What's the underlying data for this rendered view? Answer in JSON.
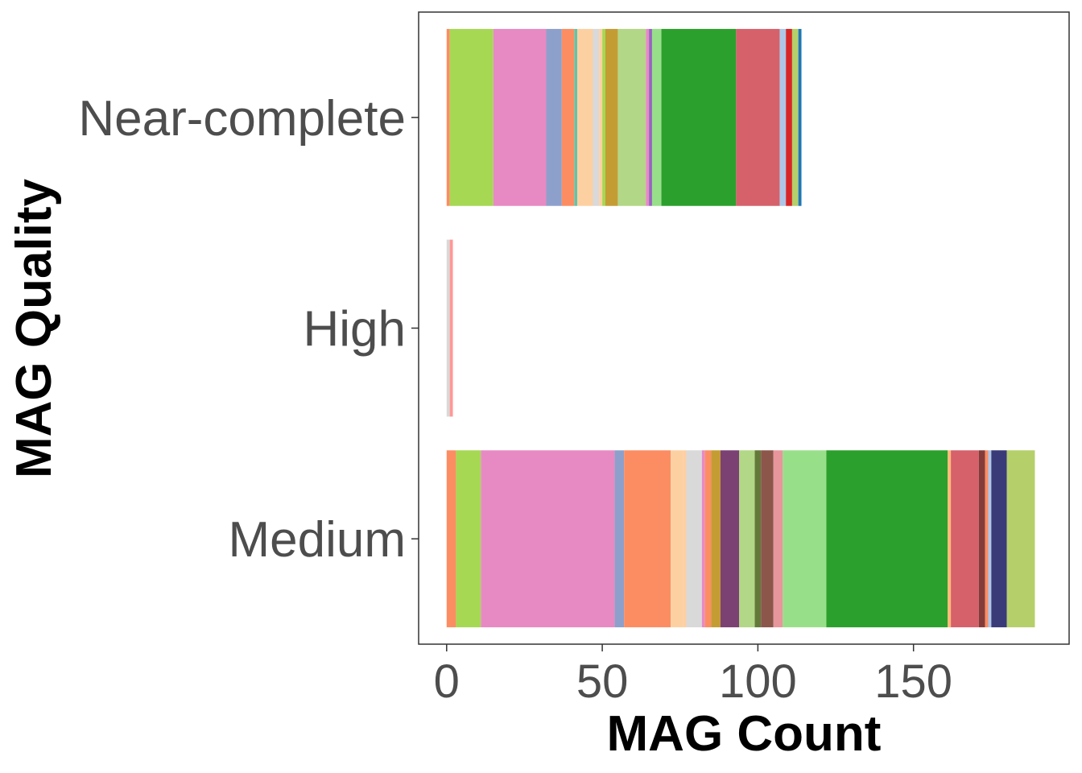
{
  "chart_data": {
    "type": "bar",
    "orientation": "horizontal",
    "stacked": true,
    "xlabel": "MAG Count",
    "ylabel": "MAG Quality",
    "xlim": [
      -9,
      200
    ],
    "xticks": [
      0,
      50,
      100,
      150
    ],
    "grid": false,
    "legend": "none",
    "categories": [
      "Near-complete",
      "High",
      "Medium"
    ],
    "stacks": [
      {
        "category": "Near-complete",
        "segments": [
          {
            "value": 1,
            "color": "#fc8d62"
          },
          {
            "value": 14,
            "color": "#a6d854"
          },
          {
            "value": 17,
            "color": "#e78ac3"
          },
          {
            "value": 5,
            "color": "#8da0cb"
          },
          {
            "value": 4,
            "color": "#fc8d62"
          },
          {
            "value": 1,
            "color": "#66c2a5"
          },
          {
            "value": 5,
            "color": "#fdd0a2"
          },
          {
            "value": 2,
            "color": "#d9d9d9"
          },
          {
            "value": 1,
            "color": "#fdd0a2"
          },
          {
            "value": 1,
            "color": "#a6d854"
          },
          {
            "value": 4,
            "color": "#c49c34"
          },
          {
            "value": 9,
            "color": "#b2d786"
          },
          {
            "value": 1,
            "color": "#e78ac3"
          },
          {
            "value": 1,
            "color": "#9467bd"
          },
          {
            "value": 3,
            "color": "#98df8a"
          },
          {
            "value": 24,
            "color": "#2ca02c"
          },
          {
            "value": 14,
            "color": "#d6616b"
          },
          {
            "value": 2,
            "color": "#aec7e8"
          },
          {
            "value": 2,
            "color": "#d62728"
          },
          {
            "value": 2,
            "color": "#b5cf6b"
          },
          {
            "value": 1,
            "color": "#1f77b4"
          }
        ]
      },
      {
        "category": "High",
        "segments": [
          {
            "value": 1,
            "color": "#d9d9d9"
          },
          {
            "value": 1,
            "color": "#ff9896"
          }
        ]
      },
      {
        "category": "Medium",
        "segments": [
          {
            "value": 3,
            "color": "#fc8d62"
          },
          {
            "value": 8,
            "color": "#a6d854"
          },
          {
            "value": 43,
            "color": "#e78ac3"
          },
          {
            "value": 3,
            "color": "#8da0cb"
          },
          {
            "value": 15,
            "color": "#fc8d62"
          },
          {
            "value": 4,
            "color": "#fdd0a2"
          },
          {
            "value": 1,
            "color": "#fdd0a2"
          },
          {
            "value": 5,
            "color": "#d9d9d9"
          },
          {
            "value": 1,
            "color": "#e78ac3"
          },
          {
            "value": 2,
            "color": "#fc8d62"
          },
          {
            "value": 3,
            "color": "#c49c34"
          },
          {
            "value": 6,
            "color": "#7b4173"
          },
          {
            "value": 5,
            "color": "#b2d786"
          },
          {
            "value": 2,
            "color": "#637939"
          },
          {
            "value": 4,
            "color": "#8c564b"
          },
          {
            "value": 3,
            "color": "#e7969c"
          },
          {
            "value": 14,
            "color": "#98df8a"
          },
          {
            "value": 39,
            "color": "#2ca02c"
          },
          {
            "value": 1,
            "color": "#ffbb78"
          },
          {
            "value": 9,
            "color": "#d6616b"
          },
          {
            "value": 2,
            "color": "#843c39"
          },
          {
            "value": 1,
            "color": "#fc8d62"
          },
          {
            "value": 1,
            "color": "#aec7e8"
          },
          {
            "value": 5,
            "color": "#393b79"
          },
          {
            "value": 9,
            "color": "#b5cf6b"
          }
        ]
      }
    ]
  }
}
